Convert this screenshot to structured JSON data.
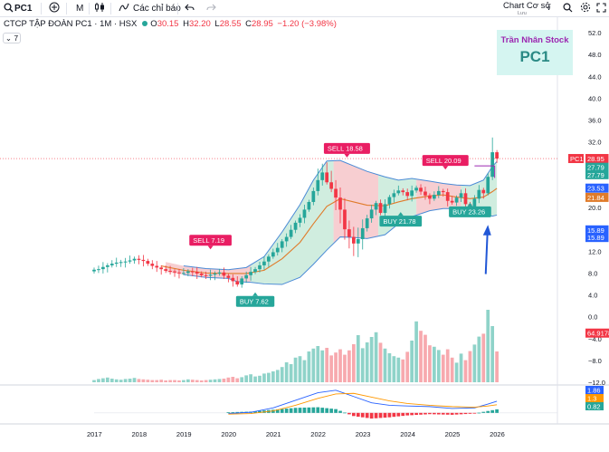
{
  "toolbar": {
    "symbol": "PC1",
    "add_icon": "plus-circle-icon",
    "interval": "M",
    "chart_style_icon": "candles-icon",
    "indicators_label": "Các chỉ báo",
    "undo_icon": "undo-icon",
    "redo_icon": "redo-icon",
    "layout_label": "Chart Cơ sở",
    "layout_sub": "Lưu",
    "search_icon": "search-icon",
    "settings_icon": "gear-icon",
    "fullscreen_icon": "fullscreen-icon"
  },
  "legend": {
    "name": "CTCP TẬP ĐOÀN PC1 · 1M · HSX",
    "o_key": "O",
    "o_val": "30.15",
    "h_key": "H",
    "h_val": "32.20",
    "l_key": "L",
    "l_val": "28.55",
    "c_key": "C",
    "c_val": "28.95",
    "change": "−1.20 (−3.98%)",
    "collapse_label": "7"
  },
  "watermark": {
    "author": "Trần Nhân Stock",
    "ticker": "PC1"
  },
  "colors": {
    "up": "#26a69a",
    "down": "#f23645",
    "up_vol": "#8fd3c9",
    "down_vol": "#f7a9ae",
    "band_up": "#c8ead9",
    "band_down": "#f6c6c9",
    "band_line": "#4a8ad6",
    "mid_line": "#e07b2a",
    "macd_line": "#2962ff",
    "signal_line": "#ff9800",
    "sell_box": "#e91e63",
    "buy_box": "#26a69a",
    "arrow": "#2157d6"
  },
  "chart_data": {
    "type": "candlestick",
    "symbol": "PC1",
    "interval": "1M",
    "x_ticks": [
      "2017",
      "2018",
      "2019",
      "2020",
      "2021",
      "2022",
      "2023",
      "2024",
      "2025",
      "2026"
    ],
    "price_axis": {
      "ticks": [
        "52.0",
        "48.0",
        "44.0",
        "40.0",
        "36.0",
        "32.0",
        "28.0",
        "24.0",
        "20.0",
        "16.0",
        "12.0",
        "8.0",
        "4.0",
        "0.0",
        "−4.0",
        "−8.0",
        "−12.0"
      ],
      "ylim": [
        -12,
        52
      ]
    },
    "price_series": [
      [
        2017.0,
        8.6
      ],
      [
        2017.1,
        8.7
      ],
      [
        2017.2,
        9.1
      ],
      [
        2017.3,
        9.4
      ],
      [
        2017.4,
        9.7
      ],
      [
        2017.5,
        9.9
      ],
      [
        2017.6,
        10.0
      ],
      [
        2017.7,
        10.1
      ],
      [
        2017.8,
        10.3
      ],
      [
        2017.9,
        10.6
      ],
      [
        2018.0,
        10.4
      ],
      [
        2018.1,
        10.2
      ],
      [
        2018.2,
        9.7
      ],
      [
        2018.3,
        9.3
      ],
      [
        2018.4,
        9.0
      ],
      [
        2018.5,
        8.7
      ],
      [
        2018.6,
        8.4
      ],
      [
        2018.7,
        8.3
      ],
      [
        2018.8,
        8.1
      ],
      [
        2018.9,
        8.0
      ],
      [
        2019.0,
        8.0
      ],
      [
        2019.1,
        8.3
      ],
      [
        2019.2,
        8.2
      ],
      [
        2019.3,
        7.9
      ],
      [
        2019.4,
        7.6
      ],
      [
        2019.5,
        7.5
      ],
      [
        2019.6,
        7.7
      ],
      [
        2019.7,
        7.9
      ],
      [
        2019.8,
        8.1
      ],
      [
        2019.9,
        7.5
      ],
      [
        2020.0,
        7.1
      ],
      [
        2020.1,
        6.5
      ],
      [
        2020.2,
        5.9
      ],
      [
        2020.3,
        7.0
      ],
      [
        2020.4,
        7.6
      ],
      [
        2020.5,
        8.2
      ],
      [
        2020.6,
        8.7
      ],
      [
        2020.7,
        9.4
      ],
      [
        2020.8,
        10.1
      ],
      [
        2020.9,
        11.0
      ],
      [
        2021.0,
        11.8
      ],
      [
        2021.1,
        12.6
      ],
      [
        2021.2,
        13.8
      ],
      [
        2021.3,
        14.6
      ],
      [
        2021.4,
        15.9
      ],
      [
        2021.5,
        17.2
      ],
      [
        2021.6,
        18.1
      ],
      [
        2021.7,
        19.6
      ],
      [
        2021.8,
        21.0
      ],
      [
        2021.9,
        23.0
      ],
      [
        2022.0,
        25.0
      ],
      [
        2022.1,
        26.4
      ],
      [
        2022.2,
        24.6
      ],
      [
        2022.3,
        23.4
      ],
      [
        2022.4,
        21.8
      ],
      [
        2022.5,
        19.6
      ],
      [
        2022.6,
        16.0
      ],
      [
        2022.7,
        14.6
      ],
      [
        2022.8,
        13.4
      ],
      [
        2022.9,
        14.2
      ],
      [
        2023.0,
        16.2
      ],
      [
        2023.1,
        18.0
      ],
      [
        2023.2,
        19.6
      ],
      [
        2023.3,
        20.8
      ],
      [
        2023.4,
        19.0
      ],
      [
        2023.5,
        20.6
      ],
      [
        2023.6,
        21.9
      ],
      [
        2023.7,
        22.6
      ],
      [
        2023.8,
        23.1
      ],
      [
        2023.9,
        22.8
      ],
      [
        2024.0,
        22.1
      ],
      [
        2024.1,
        23.1
      ],
      [
        2024.2,
        23.6
      ],
      [
        2024.3,
        22.9
      ],
      [
        2024.4,
        22.2
      ],
      [
        2024.5,
        21.6
      ],
      [
        2024.6,
        22.3
      ],
      [
        2024.7,
        23.0
      ],
      [
        2024.8,
        22.8
      ],
      [
        2024.9,
        21.2
      ],
      [
        2025.0,
        20.9
      ],
      [
        2025.1,
        21.8
      ],
      [
        2025.2,
        22.6
      ],
      [
        2025.3,
        20.6
      ],
      [
        2025.4,
        19.8
      ],
      [
        2025.5,
        21.6
      ],
      [
        2025.6,
        23.2
      ],
      [
        2025.7,
        22.6
      ],
      [
        2025.8,
        25.6
      ],
      [
        2025.9,
        30.1
      ],
      [
        2026.0,
        28.95
      ]
    ],
    "bollinger_upper": [
      [
        2017.0,
        9.6
      ],
      [
        2017.5,
        10.6
      ],
      [
        2018.0,
        11.2
      ],
      [
        2018.5,
        10.2
      ],
      [
        2019.0,
        9.3
      ],
      [
        2019.5,
        8.8
      ],
      [
        2020.0,
        8.6
      ],
      [
        2020.4,
        9.0
      ],
      [
        2020.8,
        11.0
      ],
      [
        2021.2,
        15.5
      ],
      [
        2021.6,
        20.5
      ],
      [
        2021.9,
        25.0
      ],
      [
        2022.2,
        28.5
      ],
      [
        2022.5,
        28.6
      ],
      [
        2022.8,
        27.6
      ],
      [
        2023.1,
        26.6
      ],
      [
        2023.5,
        25.6
      ],
      [
        2023.8,
        25.0
      ],
      [
        2024.1,
        25.3
      ],
      [
        2024.5,
        24.8
      ],
      [
        2024.8,
        24.4
      ],
      [
        2025.1,
        24.1
      ],
      [
        2025.4,
        24.0
      ],
      [
        2025.7,
        25.0
      ],
      [
        2025.9,
        27.5
      ],
      [
        2026.0,
        28.4
      ]
    ],
    "bollinger_middle": [
      [
        2017.0,
        9.0
      ],
      [
        2017.5,
        9.6
      ],
      [
        2018.0,
        9.8
      ],
      [
        2018.5,
        9.3
      ],
      [
        2019.0,
        8.5
      ],
      [
        2019.5,
        8.0
      ],
      [
        2020.0,
        7.9
      ],
      [
        2020.4,
        7.9
      ],
      [
        2020.8,
        8.5
      ],
      [
        2021.2,
        10.6
      ],
      [
        2021.6,
        13.6
      ],
      [
        2021.9,
        17.0
      ],
      [
        2022.2,
        20.2
      ],
      [
        2022.5,
        21.6
      ],
      [
        2022.8,
        21.0
      ],
      [
        2023.1,
        20.4
      ],
      [
        2023.5,
        20.3
      ],
      [
        2023.8,
        21.0
      ],
      [
        2024.1,
        21.6
      ],
      [
        2024.5,
        22.1
      ],
      [
        2024.8,
        22.3
      ],
      [
        2025.1,
        21.9
      ],
      [
        2025.4,
        21.6
      ],
      [
        2025.7,
        21.9
      ],
      [
        2025.9,
        22.9
      ],
      [
        2026.0,
        23.5
      ]
    ],
    "bollinger_lower": [
      [
        2017.0,
        8.3
      ],
      [
        2017.5,
        8.6
      ],
      [
        2018.0,
        8.4
      ],
      [
        2018.5,
        8.3
      ],
      [
        2019.0,
        7.7
      ],
      [
        2019.5,
        7.2
      ],
      [
        2020.0,
        7.0
      ],
      [
        2020.2,
        6.4
      ],
      [
        2020.5,
        6.3
      ],
      [
        2020.8,
        6.0
      ],
      [
        2021.2,
        5.9
      ],
      [
        2021.6,
        7.2
      ],
      [
        2021.9,
        9.6
      ],
      [
        2022.2,
        12.2
      ],
      [
        2022.5,
        14.6
      ],
      [
        2022.8,
        14.5
      ],
      [
        2023.1,
        14.3
      ],
      [
        2023.5,
        15.0
      ],
      [
        2023.8,
        17.0
      ],
      [
        2024.1,
        18.3
      ],
      [
        2024.5,
        19.4
      ],
      [
        2024.8,
        19.8
      ],
      [
        2025.1,
        19.8
      ],
      [
        2025.4,
        19.3
      ],
      [
        2025.7,
        18.8
      ],
      [
        2025.9,
        18.4
      ],
      [
        2026.0,
        18.6
      ]
    ],
    "price_labels": [
      {
        "label": "PC1",
        "value": "28.95",
        "color": "#f23645"
      },
      {
        "label": "",
        "value": "27.79",
        "color": "#26a69a"
      },
      {
        "label": "",
        "value": "27.79",
        "color": "#26a69a"
      },
      {
        "label": "",
        "value": "23.53",
        "color": "#2962ff"
      },
      {
        "label": "",
        "value": "21.84",
        "color": "#e07b2a"
      },
      {
        "label": "",
        "value": "15.89",
        "color": "#2962ff"
      },
      {
        "label": "",
        "value": "15.89",
        "color": "#2962ff"
      },
      {
        "label": "",
        "value": "64.9178",
        "color": "#f23645"
      }
    ],
    "signals": [
      {
        "text": "SELL 7.19",
        "type": "sell",
        "x": 2019.6,
        "y": 14.0
      },
      {
        "text": "BUY 7.62",
        "type": "buy",
        "x": 2020.6,
        "y": 2.8
      },
      {
        "text": "SELL 18.58",
        "type": "sell",
        "x": 2022.65,
        "y": 30.8
      },
      {
        "text": "BUY 21.78",
        "type": "buy",
        "x": 2023.85,
        "y": 17.5
      },
      {
        "text": "SELL 20.09",
        "type": "sell",
        "x": 2024.85,
        "y": 28.6
      },
      {
        "text": "BUY 23.26",
        "type": "buy",
        "x": 2025.4,
        "y": 19.2
      }
    ],
    "volume": [
      0.6,
      0.9,
      1.1,
      1.3,
      1.0,
      0.8,
      0.7,
      0.9,
      1.0,
      1.2,
      0.9,
      0.8,
      0.7,
      0.6,
      0.6,
      0.7,
      0.5,
      0.6,
      0.6,
      0.5,
      0.6,
      0.8,
      0.7,
      0.6,
      0.5,
      0.6,
      0.7,
      0.8,
      0.9,
      1.0,
      1.3,
      1.5,
      1.1,
      1.4,
      1.9,
      2.2,
      1.6,
      1.8,
      2.4,
      2.6,
      3.0,
      3.4,
      4.2,
      5.5,
      5.0,
      6.8,
      7.2,
      6.1,
      8.5,
      9.3,
      10.0,
      8.8,
      9.5,
      7.4,
      8.2,
      9.1,
      7.6,
      8.8,
      10.5,
      13.0,
      9.4,
      11.0,
      12.5,
      13.8,
      10.9,
      9.3,
      8.0,
      7.2,
      6.8,
      6.3,
      8.4,
      11.5,
      16.8,
      14.2,
      13.1,
      10.2,
      9.8,
      8.9,
      7.6,
      9.1,
      6.8,
      5.4,
      7.9,
      6.1,
      8.6,
      10.4,
      12.6,
      13.4,
      20.0,
      15.5,
      8.5
    ],
    "volume_up": [
      true,
      true,
      true,
      true,
      true,
      true,
      true,
      true,
      true,
      true,
      false,
      false,
      false,
      false,
      false,
      false,
      false,
      false,
      false,
      false,
      true,
      true,
      false,
      false,
      false,
      false,
      true,
      true,
      true,
      false,
      false,
      false,
      false,
      true,
      true,
      true,
      true,
      true,
      true,
      true,
      true,
      true,
      true,
      true,
      true,
      true,
      true,
      true,
      true,
      true,
      true,
      true,
      false,
      false,
      false,
      false,
      false,
      false,
      false,
      true,
      true,
      true,
      true,
      true,
      false,
      true,
      true,
      true,
      true,
      false,
      false,
      true,
      true,
      false,
      false,
      false,
      true,
      true,
      false,
      false,
      false,
      true,
      true,
      false,
      false,
      true,
      true,
      false,
      true,
      true,
      false
    ],
    "macd_axis": {
      "ticks": [
        "1.86",
        "1.3",
        "0.82"
      ]
    },
    "macd": [
      [
        2020.0,
        -0.1
      ],
      [
        2020.5,
        0.1
      ],
      [
        2021.0,
        0.8
      ],
      [
        2021.5,
        2.0
      ],
      [
        2022.0,
        3.2
      ],
      [
        2022.4,
        3.6
      ],
      [
        2022.8,
        2.6
      ],
      [
        2023.2,
        1.6
      ],
      [
        2023.6,
        1.2
      ],
      [
        2024.0,
        1.1
      ],
      [
        2024.5,
        1.0
      ],
      [
        2025.0,
        0.7
      ],
      [
        2025.5,
        0.8
      ],
      [
        2025.8,
        1.4
      ],
      [
        2026.0,
        1.86
      ]
    ],
    "macd_signal": [
      [
        2020.0,
        -0.2
      ],
      [
        2020.5,
        -0.1
      ],
      [
        2021.0,
        0.3
      ],
      [
        2021.5,
        1.2
      ],
      [
        2022.0,
        2.3
      ],
      [
        2022.4,
        3.0
      ],
      [
        2022.8,
        3.1
      ],
      [
        2023.2,
        2.5
      ],
      [
        2023.6,
        1.9
      ],
      [
        2024.0,
        1.5
      ],
      [
        2024.5,
        1.2
      ],
      [
        2025.0,
        1.0
      ],
      [
        2025.5,
        0.9
      ],
      [
        2025.8,
        1.1
      ],
      [
        2026.0,
        1.3
      ]
    ],
    "macd_axis_labels": [
      {
        "value": "1.86",
        "color": "#2962ff"
      },
      {
        "value": "1.3",
        "color": "#ff9800"
      },
      {
        "value": "0.82",
        "color": "#26a69a"
      }
    ]
  }
}
